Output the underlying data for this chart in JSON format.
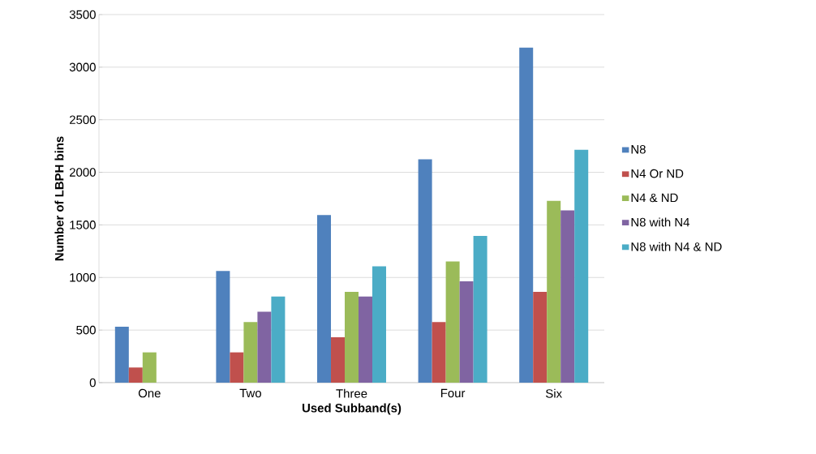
{
  "chart_data": {
    "type": "bar",
    "xlabel": "Used Subband(s)",
    "ylabel": "Number of LBPH bins",
    "categories": [
      "One",
      "Two",
      "Three",
      "Four",
      "Six"
    ],
    "series": [
      {
        "name": "N8",
        "color": "#4f81bd",
        "values": [
          531,
          1062,
          1593,
          2124,
          3186
        ]
      },
      {
        "name": "N4 Or ND",
        "color": "#c0504d",
        "values": [
          144,
          288,
          432,
          576,
          864
        ]
      },
      {
        "name": "N4 & ND",
        "color": "#9bbb59",
        "values": [
          288,
          576,
          864,
          1152,
          1728
        ]
      },
      {
        "name": "N8 with N4",
        "color": "#8064a2",
        "values": [
          null,
          675,
          819,
          963,
          1638
        ]
      },
      {
        "name": "N8 with N4 & ND",
        "color": "#4bacc6",
        "values": [
          null,
          819,
          1107,
          1395,
          2214
        ]
      }
    ],
    "ylim": [
      0,
      3500
    ],
    "yticks": [
      0,
      500,
      1000,
      1500,
      2000,
      2500,
      3000,
      3500
    ],
    "grid": "y",
    "legend": "right"
  }
}
